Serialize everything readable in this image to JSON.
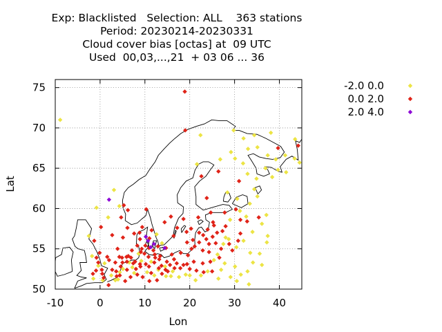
{
  "title_lines": [
    "Exp: Blacklisted   Selection: ALL    363 stations",
    "Period: 20230214-20230331",
    "Cloud cover bias [octas] at  09 UTC",
    "Used  00,03,...,21  + 03 06 ... 36"
  ],
  "chart_data": {
    "type": "scatter",
    "xlabel": "Lon",
    "ylabel": "Lat",
    "xlim": [
      -10,
      45
    ],
    "ylim": [
      50,
      76
    ],
    "xticks": [
      "-10",
      "0",
      "10",
      "20",
      "30",
      "40"
    ],
    "yticks": [
      "50",
      "55",
      "60",
      "65",
      "70",
      "75"
    ],
    "grid": true,
    "legend_position": "outside-right",
    "series": [
      {
        "name": "-2.0 0.0",
        "color": "#ece444",
        "points": [
          [
            -8.9,
            71.0
          ],
          [
            43.5,
            68.6
          ],
          [
            38.1,
            69.4
          ],
          [
            34.4,
            69.1
          ],
          [
            29.8,
            69.7
          ],
          [
            32.0,
            68.7
          ],
          [
            22.4,
            69.1
          ],
          [
            35.1,
            67.6
          ],
          [
            33.0,
            67.4
          ],
          [
            29.2,
            67.0
          ],
          [
            30.1,
            66.2
          ],
          [
            37.4,
            66.6
          ],
          [
            39.2,
            66.1
          ],
          [
            41.3,
            66.6
          ],
          [
            31.9,
            65.6
          ],
          [
            36.9,
            65.0
          ],
          [
            39.7,
            64.8
          ],
          [
            38.4,
            63.9
          ],
          [
            34.9,
            63.7
          ],
          [
            41.5,
            64.5
          ],
          [
            43.4,
            66.2
          ],
          [
            44.5,
            65.7
          ],
          [
            26.8,
            66.1
          ],
          [
            21.6,
            65.5
          ],
          [
            32.9,
            64.3
          ],
          [
            30.6,
            61.2
          ],
          [
            33.4,
            60.6
          ],
          [
            35.1,
            61.5
          ],
          [
            34.4,
            62.4
          ],
          [
            28.4,
            62.0
          ],
          [
            31.2,
            59.7
          ],
          [
            32.6,
            59.0
          ],
          [
            29.0,
            58.6
          ],
          [
            36.1,
            58.1
          ],
          [
            37.1,
            59.2
          ],
          [
            34.0,
            57.1
          ],
          [
            37.4,
            56.6
          ],
          [
            32.0,
            56.0
          ],
          [
            30.4,
            55.2
          ],
          [
            33.5,
            54.5
          ],
          [
            34.1,
            53.3
          ],
          [
            36.1,
            53.0
          ],
          [
            30.1,
            52.8
          ],
          [
            32.9,
            52.2
          ],
          [
            31.4,
            51.8
          ],
          [
            29.1,
            51.5
          ],
          [
            27.8,
            53.2
          ],
          [
            26.2,
            54.3
          ],
          [
            25.4,
            53.6
          ],
          [
            24.0,
            52.2
          ],
          [
            22.5,
            51.7
          ],
          [
            28.0,
            56.4
          ],
          [
            27.5,
            55.6
          ],
          [
            27.0,
            52.4
          ],
          [
            26.4,
            51.3
          ],
          [
            21.3,
            51.1
          ],
          [
            20.0,
            51.7
          ],
          [
            -0.8,
            60.1
          ],
          [
            3.1,
            62.3
          ],
          [
            1.8,
            58.9
          ],
          [
            -2.5,
            56.6
          ],
          [
            -1.8,
            54.1
          ],
          [
            -0.4,
            52.9
          ],
          [
            -1.5,
            51.3
          ],
          [
            0.6,
            51.1
          ],
          [
            1.0,
            53.2
          ],
          [
            2.5,
            51.7
          ],
          [
            3.4,
            51.1
          ],
          [
            4.4,
            52.1
          ],
          [
            6.5,
            53.3
          ],
          [
            7.6,
            52.0
          ],
          [
            9.2,
            53.5
          ],
          [
            10.5,
            52.1
          ],
          [
            11.4,
            53.4
          ],
          [
            12.1,
            51.7
          ],
          [
            13.0,
            52.4
          ],
          [
            14.5,
            52.8
          ],
          [
            14.7,
            51.6
          ],
          [
            15.8,
            51.6
          ],
          [
            8.6,
            54.4
          ],
          [
            7.2,
            52.7
          ],
          [
            5.1,
            52.5
          ],
          [
            4.0,
            51.2
          ],
          [
            16.2,
            52.2
          ],
          [
            17.6,
            51.5
          ],
          [
            19.1,
            51.8
          ],
          [
            30.5,
            51.0
          ],
          [
            33.2,
            50.6
          ],
          [
            35.6,
            54.4
          ],
          [
            37.2,
            55.8
          ],
          [
            28.7,
            56.2
          ],
          [
            13.8,
            55.7
          ],
          [
            4.3,
            60.3
          ],
          [
            12.6,
            56.8
          ]
        ]
      },
      {
        "name": "0.0 2.0",
        "color": "#e02318",
        "points": [
          [
            18.9,
            74.5
          ],
          [
            19.0,
            69.7
          ],
          [
            44.2,
            67.8
          ],
          [
            39.7,
            67.5
          ],
          [
            22.6,
            64.0
          ],
          [
            26.4,
            64.6
          ],
          [
            31.0,
            63.4
          ],
          [
            23.8,
            61.3
          ],
          [
            31.3,
            58.6
          ],
          [
            30.3,
            59.9
          ],
          [
            27.8,
            59.5
          ],
          [
            35.4,
            58.9
          ],
          [
            32.8,
            58.4
          ],
          [
            24.7,
            59.5
          ],
          [
            19.3,
            57.1
          ],
          [
            20.7,
            56.1
          ],
          [
            21.9,
            58.9
          ],
          [
            15.8,
            59.0
          ],
          [
            14.4,
            58.3
          ],
          [
            10.3,
            59.9
          ],
          [
            5.3,
            60.4
          ],
          [
            6.2,
            59.8
          ],
          [
            4.7,
            58.9
          ],
          [
            9.4,
            57.7
          ],
          [
            11.0,
            56.3
          ],
          [
            14.7,
            55.1
          ],
          [
            12.9,
            55.3
          ],
          [
            10.1,
            55.4
          ],
          [
            8.9,
            56.2
          ],
          [
            5.1,
            56.4
          ],
          [
            3.9,
            55.0
          ],
          [
            2.7,
            56.7
          ],
          [
            0.2,
            57.7
          ],
          [
            -1.3,
            56.0
          ],
          [
            -0.1,
            54.5
          ],
          [
            -0.8,
            53.9
          ],
          [
            0.4,
            52.4
          ],
          [
            0.8,
            51.4
          ],
          [
            1.9,
            50.5
          ],
          [
            -0.4,
            53.3
          ],
          [
            1.6,
            54.0
          ],
          [
            3.4,
            53.3
          ],
          [
            4.9,
            53.9
          ],
          [
            6.3,
            54.1
          ],
          [
            7.8,
            53.4
          ],
          [
            9.9,
            54.4
          ],
          [
            10.8,
            54.0
          ],
          [
            11.9,
            54.8
          ],
          [
            13.4,
            54.1
          ],
          [
            14.9,
            53.4
          ],
          [
            16.0,
            54.3
          ],
          [
            18.0,
            54.5
          ],
          [
            19.6,
            54.2
          ],
          [
            21.1,
            55.3
          ],
          [
            22.9,
            54.8
          ],
          [
            24.3,
            54.6
          ],
          [
            25.8,
            55.7
          ],
          [
            23.7,
            56.2
          ],
          [
            22.1,
            57.0
          ],
          [
            24.0,
            57.4
          ],
          [
            26.1,
            57.0
          ],
          [
            27.3,
            57.2
          ],
          [
            25.1,
            56.5
          ],
          [
            20.9,
            53.4
          ],
          [
            22.9,
            53.2
          ],
          [
            24.6,
            53.4
          ],
          [
            26.6,
            53.9
          ],
          [
            20.0,
            52.5
          ],
          [
            18.6,
            53.0
          ],
          [
            17.1,
            53.2
          ],
          [
            15.6,
            53.0
          ],
          [
            13.7,
            52.9
          ],
          [
            12.1,
            53.3
          ],
          [
            10.2,
            53.1
          ],
          [
            9.0,
            52.8
          ],
          [
            7.4,
            53.2
          ],
          [
            6.0,
            52.4
          ],
          [
            4.6,
            52.8
          ],
          [
            3.7,
            51.6
          ],
          [
            5.6,
            51.0
          ],
          [
            6.8,
            51.5
          ],
          [
            8.3,
            51.8
          ],
          [
            9.5,
            51.5
          ],
          [
            11.0,
            51.0
          ],
          [
            12.7,
            51.1
          ],
          [
            13.8,
            51.9
          ],
          [
            15.1,
            52.2
          ],
          [
            16.5,
            53.7
          ],
          [
            17.9,
            52.6
          ],
          [
            19.4,
            53.1
          ],
          [
            21.5,
            52.3
          ],
          [
            23.1,
            52.1
          ],
          [
            25.0,
            52.2
          ],
          [
            6.0,
            53.4
          ],
          [
            5.0,
            53.3
          ],
          [
            8.0,
            52.5
          ],
          [
            9.1,
            54.6
          ],
          [
            10.9,
            55.1
          ],
          [
            12.3,
            53.9
          ],
          [
            11.4,
            52.0
          ],
          [
            3.6,
            52.2
          ],
          [
            4.4,
            51.7
          ],
          [
            2.0,
            53.6
          ],
          [
            8.9,
            53.1
          ],
          [
            10.9,
            52.8
          ],
          [
            13.1,
            52.6
          ],
          [
            14.6,
            52.4
          ],
          [
            16.6,
            52.6
          ],
          [
            22.1,
            55.8
          ],
          [
            24.3,
            55.6
          ],
          [
            27.0,
            55.0
          ],
          [
            28.8,
            55.6
          ],
          [
            23.0,
            56.7
          ],
          [
            29.5,
            54.8
          ],
          [
            31.3,
            56.9
          ],
          [
            25.4,
            57.9
          ],
          [
            20.3,
            57.5
          ],
          [
            18.6,
            58.7
          ],
          [
            17.2,
            57.6
          ],
          [
            16.4,
            56.6
          ],
          [
            9.3,
            55.0
          ],
          [
            8.3,
            55.4
          ],
          [
            7.1,
            54.8
          ],
          [
            -1.6,
            51.9
          ],
          [
            -0.9,
            52.3
          ],
          [
            0.5,
            51.9
          ],
          [
            2.7,
            52.4
          ],
          [
            5.9,
            54.0
          ],
          [
            11.5,
            57.3
          ],
          [
            8.8,
            57.0
          ],
          [
            6.1,
            57.6
          ],
          [
            7.6,
            56.9
          ],
          [
            12.2,
            54.3
          ],
          [
            13.2,
            53.7
          ],
          [
            6.9,
            53.9
          ],
          [
            4.3,
            54.0
          ],
          [
            30.8,
            56.0
          ],
          [
            28.0,
            57.8
          ],
          [
            25.2,
            58.3
          ],
          [
            20.4,
            55.0
          ],
          [
            19.4,
            55.8
          ]
        ]
      },
      {
        "name": "2.0 4.0",
        "color": "#8e0ad6",
        "points": [
          [
            2.0,
            61.1
          ],
          [
            10.2,
            56.5
          ],
          [
            11.3,
            55.2
          ],
          [
            10.7,
            56.0
          ],
          [
            12.0,
            55.6
          ],
          [
            14.4,
            55.1
          ]
        ]
      }
    ]
  }
}
